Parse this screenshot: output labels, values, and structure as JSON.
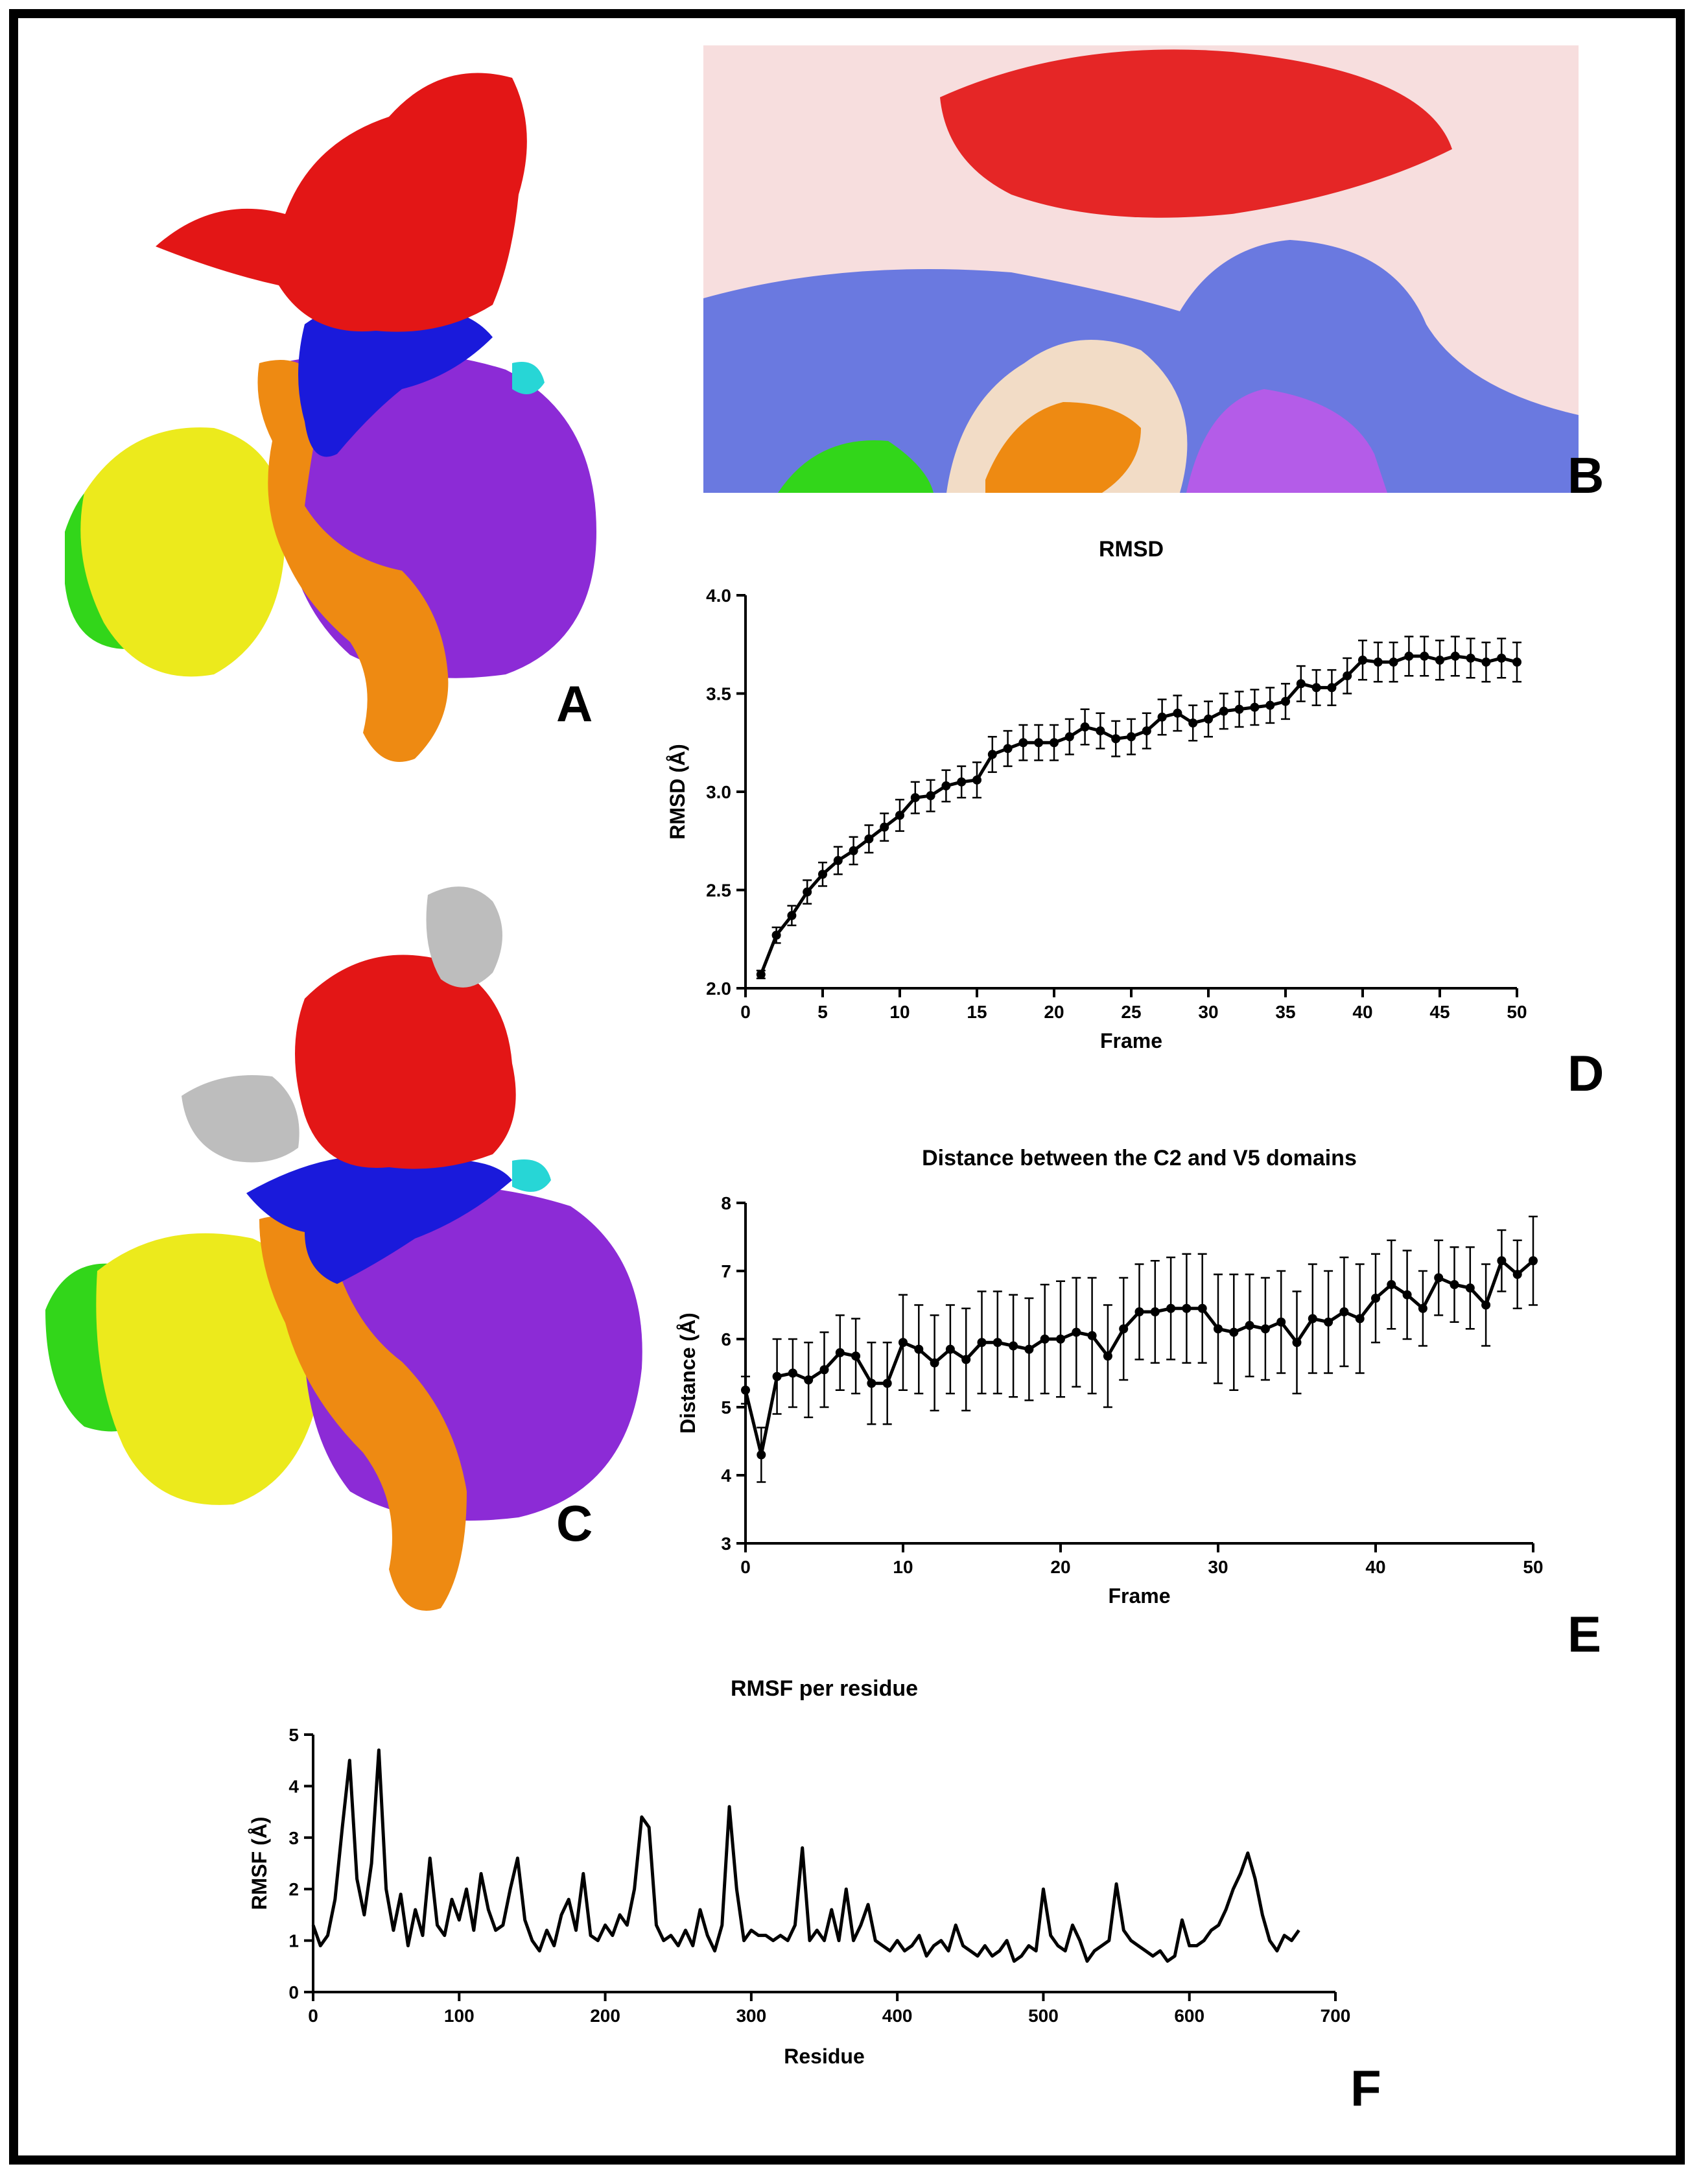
{
  "panel_letters": [
    "A",
    "B",
    "C",
    "D",
    "E",
    "F"
  ],
  "colors": {
    "red": "#e31616",
    "blue": "#1a1adb",
    "purple": "#8c2bd6",
    "orange": "#ee8a12",
    "yellow": "#ecea1c",
    "green": "#32d61a",
    "cyan": "#27d6d6",
    "gray": "#bdbdbd",
    "pale_blue": "#6a79e0",
    "peach": "#f2dcc6",
    "pink": "#f3d3d3",
    "violet": "#b45ce8"
  },
  "chart_data": [
    {
      "id": "D",
      "type": "line",
      "title": "RMSD",
      "xlabel": "Frame",
      "ylabel": "RMSD (Å)",
      "xlim": [
        0,
        50
      ],
      "ylim": [
        2.0,
        4.0
      ],
      "xticks": [
        "0",
        "5",
        "10",
        "15",
        "20",
        "25",
        "30",
        "35",
        "40",
        "45",
        "50"
      ],
      "yticks": [
        "2.0",
        "2.5",
        "3.0",
        "3.5",
        "4.0"
      ],
      "x": [
        1,
        2,
        3,
        4,
        5,
        6,
        7,
        8,
        9,
        10,
        11,
        12,
        13,
        14,
        15,
        16,
        17,
        18,
        19,
        20,
        21,
        22,
        23,
        24,
        25,
        26,
        27,
        28,
        29,
        30,
        31,
        32,
        33,
        34,
        35,
        36,
        37,
        38,
        39,
        40,
        41,
        42,
        43,
        44,
        45,
        46,
        47,
        48,
        49,
        50
      ],
      "y": [
        2.07,
        2.27,
        2.37,
        2.49,
        2.58,
        2.65,
        2.7,
        2.76,
        2.82,
        2.88,
        2.97,
        2.98,
        3.03,
        3.05,
        3.06,
        3.19,
        3.22,
        3.25,
        3.25,
        3.25,
        3.28,
        3.33,
        3.31,
        3.27,
        3.28,
        3.31,
        3.38,
        3.4,
        3.35,
        3.37,
        3.41,
        3.42,
        3.43,
        3.44,
        3.46,
        3.55,
        3.53,
        3.53,
        3.59,
        3.67,
        3.66,
        3.66,
        3.69,
        3.69,
        3.67,
        3.69,
        3.68,
        3.66,
        3.68,
        3.66
      ],
      "err": [
        0.02,
        0.04,
        0.05,
        0.06,
        0.06,
        0.07,
        0.07,
        0.07,
        0.07,
        0.08,
        0.08,
        0.08,
        0.08,
        0.08,
        0.09,
        0.09,
        0.09,
        0.09,
        0.09,
        0.09,
        0.09,
        0.09,
        0.09,
        0.09,
        0.09,
        0.09,
        0.09,
        0.09,
        0.09,
        0.09,
        0.09,
        0.09,
        0.09,
        0.09,
        0.09,
        0.09,
        0.09,
        0.09,
        0.09,
        0.1,
        0.1,
        0.1,
        0.1,
        0.1,
        0.1,
        0.1,
        0.1,
        0.1,
        0.1,
        0.1
      ]
    },
    {
      "id": "E",
      "type": "line",
      "title": "Distance between the C2 and V5 domains",
      "xlabel": "Frame",
      "ylabel": "Distance (Å)",
      "xlim": [
        0,
        50
      ],
      "ylim": [
        3,
        8
      ],
      "xticks": [
        "0",
        "10",
        "20",
        "30",
        "40",
        "50"
      ],
      "yticks": [
        "3",
        "4",
        "5",
        "6",
        "7",
        "8"
      ],
      "x": [
        0,
        1,
        2,
        3,
        4,
        5,
        6,
        7,
        8,
        9,
        10,
        11,
        12,
        13,
        14,
        15,
        16,
        17,
        18,
        19,
        20,
        21,
        22,
        23,
        24,
        25,
        26,
        27,
        28,
        29,
        30,
        31,
        32,
        33,
        34,
        35,
        36,
        37,
        38,
        39,
        40,
        41,
        42,
        43,
        44,
        45,
        46,
        47,
        48,
        49,
        50
      ],
      "y": [
        5.25,
        4.3,
        5.45,
        5.5,
        5.4,
        5.55,
        5.8,
        5.75,
        5.35,
        5.35,
        5.95,
        5.85,
        5.65,
        5.85,
        5.7,
        5.95,
        5.95,
        5.9,
        5.85,
        6.0,
        6.0,
        6.1,
        6.05,
        5.75,
        6.15,
        6.4,
        6.4,
        6.45,
        6.45,
        6.45,
        6.15,
        6.1,
        6.2,
        6.15,
        6.25,
        5.95,
        6.3,
        6.25,
        6.4,
        6.3,
        6.6,
        6.8,
        6.65,
        6.45,
        6.9,
        6.8,
        6.75,
        6.5,
        7.15,
        6.95,
        7.15
      ],
      "err": [
        0.2,
        0.4,
        0.55,
        0.5,
        0.55,
        0.55,
        0.55,
        0.55,
        0.6,
        0.6,
        0.7,
        0.65,
        0.7,
        0.65,
        0.75,
        0.75,
        0.75,
        0.75,
        0.75,
        0.8,
        0.85,
        0.8,
        0.85,
        0.75,
        0.75,
        0.7,
        0.75,
        0.75,
        0.8,
        0.8,
        0.8,
        0.85,
        0.75,
        0.75,
        0.75,
        0.75,
        0.8,
        0.75,
        0.8,
        0.8,
        0.65,
        0.65,
        0.65,
        0.55,
        0.55,
        0.55,
        0.6,
        0.6,
        0.45,
        0.5,
        0.65
      ]
    },
    {
      "id": "F",
      "type": "line",
      "title": "RMSF per residue",
      "xlabel": "Residue",
      "ylabel": "RMSF (Å)",
      "xlim": [
        0,
        700
      ],
      "ylim": [
        0,
        5
      ],
      "xticks": [
        "0",
        "100",
        "200",
        "300",
        "400",
        "500",
        "600",
        "700"
      ],
      "yticks": [
        "0",
        "1",
        "2",
        "3",
        "4",
        "5"
      ],
      "x": [
        0,
        5,
        10,
        15,
        20,
        25,
        30,
        35,
        40,
        45,
        50,
        55,
        60,
        65,
        70,
        75,
        80,
        85,
        90,
        95,
        100,
        105,
        110,
        115,
        120,
        125,
        130,
        135,
        140,
        145,
        150,
        155,
        160,
        165,
        170,
        175,
        180,
        185,
        190,
        195,
        200,
        205,
        210,
        215,
        220,
        225,
        230,
        235,
        240,
        245,
        250,
        255,
        260,
        265,
        270,
        275,
        280,
        285,
        290,
        295,
        300,
        305,
        310,
        315,
        320,
        325,
        330,
        335,
        340,
        345,
        350,
        355,
        360,
        365,
        370,
        375,
        380,
        385,
        390,
        395,
        400,
        405,
        410,
        415,
        420,
        425,
        430,
        435,
        440,
        445,
        450,
        455,
        460,
        465,
        470,
        475,
        480,
        485,
        490,
        495,
        500,
        505,
        510,
        515,
        520,
        525,
        530,
        535,
        540,
        545,
        550,
        555,
        560,
        565,
        570,
        575,
        580,
        585,
        590,
        595,
        600,
        605,
        610,
        615,
        620,
        625,
        630,
        635,
        640,
        645,
        650,
        655,
        660,
        665,
        670,
        675
      ],
      "y": [
        1.3,
        0.9,
        1.1,
        1.8,
        3.2,
        4.5,
        2.2,
        1.5,
        2.5,
        4.7,
        2.0,
        1.2,
        1.9,
        0.9,
        1.6,
        1.1,
        2.6,
        1.3,
        1.1,
        1.8,
        1.4,
        2.0,
        1.2,
        2.3,
        1.6,
        1.2,
        1.3,
        2.0,
        2.6,
        1.4,
        1.0,
        0.8,
        1.2,
        0.9,
        1.5,
        1.8,
        1.2,
        2.3,
        1.1,
        1.0,
        1.3,
        1.1,
        1.5,
        1.3,
        2.0,
        3.4,
        3.2,
        1.3,
        1.0,
        1.1,
        0.9,
        1.2,
        0.9,
        1.6,
        1.1,
        0.8,
        1.3,
        3.6,
        2.0,
        1.0,
        1.2,
        1.1,
        1.1,
        1.0,
        1.1,
        1.0,
        1.3,
        2.8,
        1.0,
        1.2,
        1.0,
        1.6,
        1.0,
        2.0,
        1.0,
        1.3,
        1.7,
        1.0,
        0.9,
        0.8,
        1.0,
        0.8,
        0.9,
        1.1,
        0.7,
        0.9,
        1.0,
        0.8,
        1.3,
        0.9,
        0.8,
        0.7,
        0.9,
        0.7,
        0.8,
        1.0,
        0.6,
        0.7,
        0.9,
        0.8,
        2.0,
        1.1,
        0.9,
        0.8,
        1.3,
        1.0,
        0.6,
        0.8,
        0.9,
        1.0,
        2.1,
        1.2,
        1.0,
        0.9,
        0.8,
        0.7,
        0.8,
        0.6,
        0.7,
        1.4,
        0.9,
        0.9,
        1.0,
        1.2,
        1.3,
        1.6,
        2.0,
        2.3,
        2.7,
        2.2,
        1.5,
        1.0,
        0.8,
        1.1,
        1.0,
        1.2
      ]
    }
  ]
}
